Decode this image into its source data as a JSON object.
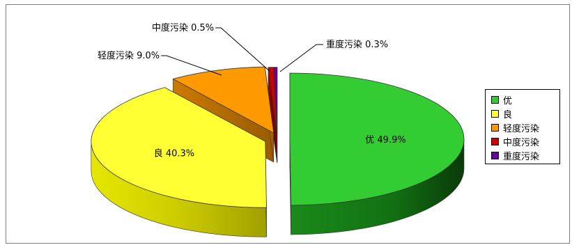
{
  "chart_data": {
    "type": "pie",
    "title": "",
    "categories": [
      "优",
      "良",
      "轻度污染",
      "中度污染",
      "重度污染"
    ],
    "values": [
      49.9,
      40.3,
      9.0,
      0.5,
      0.3
    ],
    "colors": [
      "#33cc33",
      "#ffff33",
      "#ff9900",
      "#cc0000",
      "#660099"
    ],
    "exploded": true,
    "style": "3d",
    "legend_position": "right",
    "labels": [
      "优 49.9%",
      "良 40.3%",
      "轻度污染 9.0%",
      "中度污染 0.5%",
      "重度污染 0.3%"
    ]
  }
}
